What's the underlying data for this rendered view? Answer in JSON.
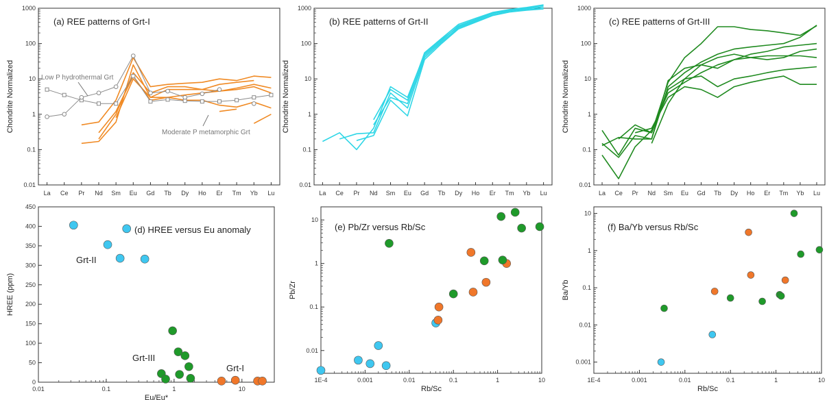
{
  "chart_data": [
    {
      "panel": "a",
      "type": "line",
      "title": "(a) REE patterns of Grt-I",
      "xlabel": "",
      "ylabel": "Chondrite Normalized",
      "categories": [
        "La",
        "Ce",
        "Pr",
        "Nd",
        "Sm",
        "Eu",
        "Gd",
        "Tb",
        "Dy",
        "Ho",
        "Er",
        "Tm",
        "Yb",
        "Lu"
      ],
      "ylog": true,
      "ylim": [
        0.01,
        1000
      ],
      "yticks": [
        "0.01",
        "0.1",
        "1",
        "10",
        "100",
        "1000"
      ],
      "color": "#f08a24",
      "ref_color": "#8a8a8a",
      "series": [
        {
          "values": [
            null,
            null,
            0.15,
            0.17,
            0.6,
            25,
            3,
            5,
            5,
            5,
            4.5,
            5.5,
            7,
            5.5
          ]
        },
        {
          "values": [
            null,
            null,
            0.5,
            0.6,
            2.5,
            40,
            6,
            7,
            7.5,
            8,
            10,
            9,
            12,
            11
          ]
        },
        {
          "values": [
            null,
            null,
            null,
            0.2,
            1,
            15,
            4,
            6,
            6,
            5,
            7,
            8,
            9,
            null
          ]
        },
        {
          "values": [
            null,
            null,
            null,
            0.3,
            1.2,
            12,
            2.5,
            3,
            3.5,
            4,
            4.5,
            5,
            6,
            4
          ]
        },
        {
          "values": [
            null,
            null,
            null,
            null,
            0.8,
            10,
            3,
            3,
            2.5,
            2.5,
            1.8,
            1.6,
            2.2,
            1.5
          ]
        },
        {
          "values": [
            null,
            null,
            null,
            null,
            null,
            null,
            null,
            null,
            null,
            null,
            null,
            null,
            0.55,
            1.0
          ]
        },
        {
          "values": [
            null,
            null,
            null,
            null,
            null,
            null,
            null,
            null,
            null,
            null,
            1.2,
            1.4,
            null,
            null
          ]
        }
      ],
      "reference": [
        {
          "marker": "square",
          "values": [
            5,
            3.5,
            2.5,
            2,
            2,
            12,
            2.3,
            2.6,
            2.4,
            2.3,
            2.3,
            2.5,
            3,
            3.5
          ]
        },
        {
          "marker": "circle",
          "values": [
            0.85,
            1,
            3,
            4,
            6,
            45,
            4,
            4.5,
            3,
            3.8,
            5,
            null,
            2,
            null
          ]
        }
      ],
      "annotations": [
        "Low P hydrothermal Grt",
        "Moderate P metamorphic Grt"
      ]
    },
    {
      "panel": "b",
      "type": "line",
      "title": "(b) REE patterns of Grt-II",
      "xlabel": "",
      "ylabel": "Chondrite Normalized",
      "categories": [
        "La",
        "Ce",
        "Pr",
        "Nd",
        "Sm",
        "Eu",
        "Gd",
        "Tb",
        "Dy",
        "Ho",
        "Er",
        "Tm",
        "Yb",
        "Lu"
      ],
      "ylog": true,
      "ylim": [
        0.01,
        1000
      ],
      "yticks": [
        "0.01",
        "0.1",
        "1",
        "10",
        "100",
        "1000"
      ],
      "color": "#2fd6e6",
      "series": [
        {
          "values": [
            0.17,
            0.3,
            0.1,
            0.4,
            6,
            3,
            50,
            130,
            300,
            450,
            700,
            850,
            950,
            1100
          ]
        },
        {
          "values": [
            null,
            0.2,
            0.28,
            0.3,
            4,
            1.5,
            40,
            110,
            280,
            420,
            650,
            800,
            900,
            1000
          ]
        },
        {
          "values": [
            null,
            null,
            0.18,
            0.25,
            2.5,
            0.9,
            35,
            100,
            260,
            400,
            620,
            780,
            880,
            950
          ]
        },
        {
          "values": [
            null,
            null,
            null,
            0.5,
            3,
            2,
            45,
            120,
            320,
            480,
            720,
            880,
            1000,
            1200
          ]
        },
        {
          "values": [
            null,
            null,
            null,
            0.7,
            5,
            2.5,
            55,
            140,
            350,
            520,
            760,
            920,
            1050,
            1250
          ]
        }
      ]
    },
    {
      "panel": "c",
      "type": "line",
      "title": "(c) REE patterns of Grt-III",
      "xlabel": "",
      "ylabel": "Chondrite Normalized",
      "categories": [
        "La",
        "Ce",
        "Pr",
        "Nd",
        "Sm",
        "Eu",
        "Gd",
        "Tb",
        "Dy",
        "Ho",
        "Er",
        "Tm",
        "Yb",
        "Lu"
      ],
      "ylog": true,
      "ylim": [
        0.01,
        1000
      ],
      "yticks": [
        "0.01",
        "0.1",
        "1",
        "10",
        "100",
        "1000"
      ],
      "color": "#1f8a1f",
      "series": [
        {
          "values": [
            0.35,
            0.07,
            0.4,
            0.3,
            8,
            40,
            100,
            300,
            300,
            250,
            230,
            200,
            170,
            320
          ]
        },
        {
          "values": [
            0.15,
            0.06,
            0.25,
            0.2,
            6,
            15,
            30,
            50,
            70,
            80,
            90,
            100,
            150,
            330
          ]
        },
        {
          "values": [
            0.13,
            0.22,
            0.2,
            0.2,
            9,
            20,
            25,
            20,
            35,
            50,
            60,
            80,
            90,
            100
          ]
        },
        {
          "values": [
            0.07,
            0.015,
            0.12,
            0.35,
            4,
            8,
            15,
            25,
            35,
            40,
            45,
            45,
            45,
            40
          ]
        },
        {
          "values": [
            null,
            0.2,
            0.5,
            0.3,
            5,
            10,
            12,
            6,
            10,
            12,
            15,
            18,
            20,
            22
          ]
        },
        {
          "values": [
            null,
            null,
            0.3,
            0.4,
            3,
            6,
            5,
            3,
            6,
            8,
            10,
            12,
            7,
            7
          ]
        },
        {
          "values": [
            null,
            null,
            null,
            0.15,
            2,
            10,
            25,
            40,
            50,
            40,
            35,
            40,
            60,
            70
          ]
        }
      ]
    },
    {
      "panel": "d",
      "type": "scatter",
      "title": "(d) HREE versus Eu anomaly",
      "xlabel": "Eu/Eu*",
      "ylabel": "HREE (ppm)",
      "xlog": true,
      "xlim": [
        0.01,
        30
      ],
      "ylim": [
        0,
        450
      ],
      "xticks": [
        "0.01",
        "0.1",
        "1",
        "10"
      ],
      "yticks": [
        "0",
        "50",
        "100",
        "150",
        "200",
        "250",
        "300",
        "350",
        "400",
        "450"
      ],
      "groups": [
        "Grt-II",
        "Grt-III",
        "Grt-I"
      ],
      "series": [
        {
          "color": "#3fc7f0",
          "x": [
            0.033,
            0.105,
            0.16,
            0.2,
            0.37
          ],
          "y": [
            403,
            353,
            318,
            394,
            316
          ]
        },
        {
          "color": "#1f9a2a",
          "x": [
            0.65,
            0.75,
            0.95,
            1.15,
            1.2,
            1.45,
            1.65,
            1.75
          ],
          "y": [
            22,
            8,
            132,
            78,
            20,
            68,
            40,
            10
          ]
        },
        {
          "color": "#f0772a",
          "x": [
            5,
            8,
            17,
            20
          ],
          "y": [
            3,
            5,
            3,
            3
          ]
        }
      ]
    },
    {
      "panel": "e",
      "type": "scatter",
      "title": "(e) Pb/Zr versus Rb/Sc",
      "xlabel": "Rb/Sc",
      "ylabel": "Pb/Zr",
      "xlog": true,
      "ylog": true,
      "xlim": [
        0.0001,
        10
      ],
      "ylim": [
        0.003,
        20
      ],
      "xticks": [
        "1E-4",
        "0.001",
        "0.01",
        "0.1",
        "1",
        "10"
      ],
      "yticks": [
        "0.01",
        "0.1",
        "1",
        "10"
      ],
      "series": [
        {
          "color": "#3fc7f0",
          "x": [
            0.0001,
            0.0007,
            0.0013,
            0.002,
            0.003,
            0.04
          ],
          "y": [
            0.0035,
            0.006,
            0.005,
            0.013,
            0.0045,
            0.043
          ]
        },
        {
          "color": "#f0772a",
          "x": [
            0.045,
            0.047,
            0.25,
            0.28,
            0.55,
            1.6
          ],
          "y": [
            0.05,
            0.1,
            1.8,
            0.22,
            0.37,
            1.0
          ]
        },
        {
          "color": "#1f9a2a",
          "x": [
            0.0035,
            0.1,
            0.5,
            1.2,
            1.3,
            2.5,
            3.5,
            9
          ],
          "y": [
            2.9,
            0.2,
            1.15,
            12,
            1.2,
            15,
            6.5,
            7
          ]
        }
      ]
    },
    {
      "panel": "f",
      "type": "scatter",
      "title": "(f) Ba/Yb versus Rb/Sc",
      "xlabel": "Rb/Sc",
      "ylabel": "Ba/Yb",
      "xlog": true,
      "ylog": true,
      "xlim": [
        0.0001,
        10
      ],
      "ylim": [
        0.0005,
        15
      ],
      "xticks": [
        "1E-4",
        "0.001",
        "0.01",
        "0.1",
        "1",
        "10"
      ],
      "yticks": [
        "0.001",
        "0.01",
        "0.1",
        "1",
        "10"
      ],
      "series": [
        {
          "color": "#3fc7f0",
          "x": [
            0.003,
            0.04
          ],
          "y": [
            0.001,
            0.0055
          ]
        },
        {
          "color": "#f0772a",
          "x": [
            0.045,
            0.25,
            0.28,
            1.6
          ],
          "y": [
            0.08,
            3.1,
            0.22,
            0.16
          ]
        },
        {
          "color": "#1f9a2a",
          "x": [
            0.0035,
            0.1,
            0.5,
            1.2,
            1.3,
            2.5,
            3.5,
            9
          ],
          "y": [
            0.028,
            0.053,
            0.043,
            0.065,
            0.06,
            10,
            0.8,
            1.05
          ]
        }
      ]
    }
  ]
}
